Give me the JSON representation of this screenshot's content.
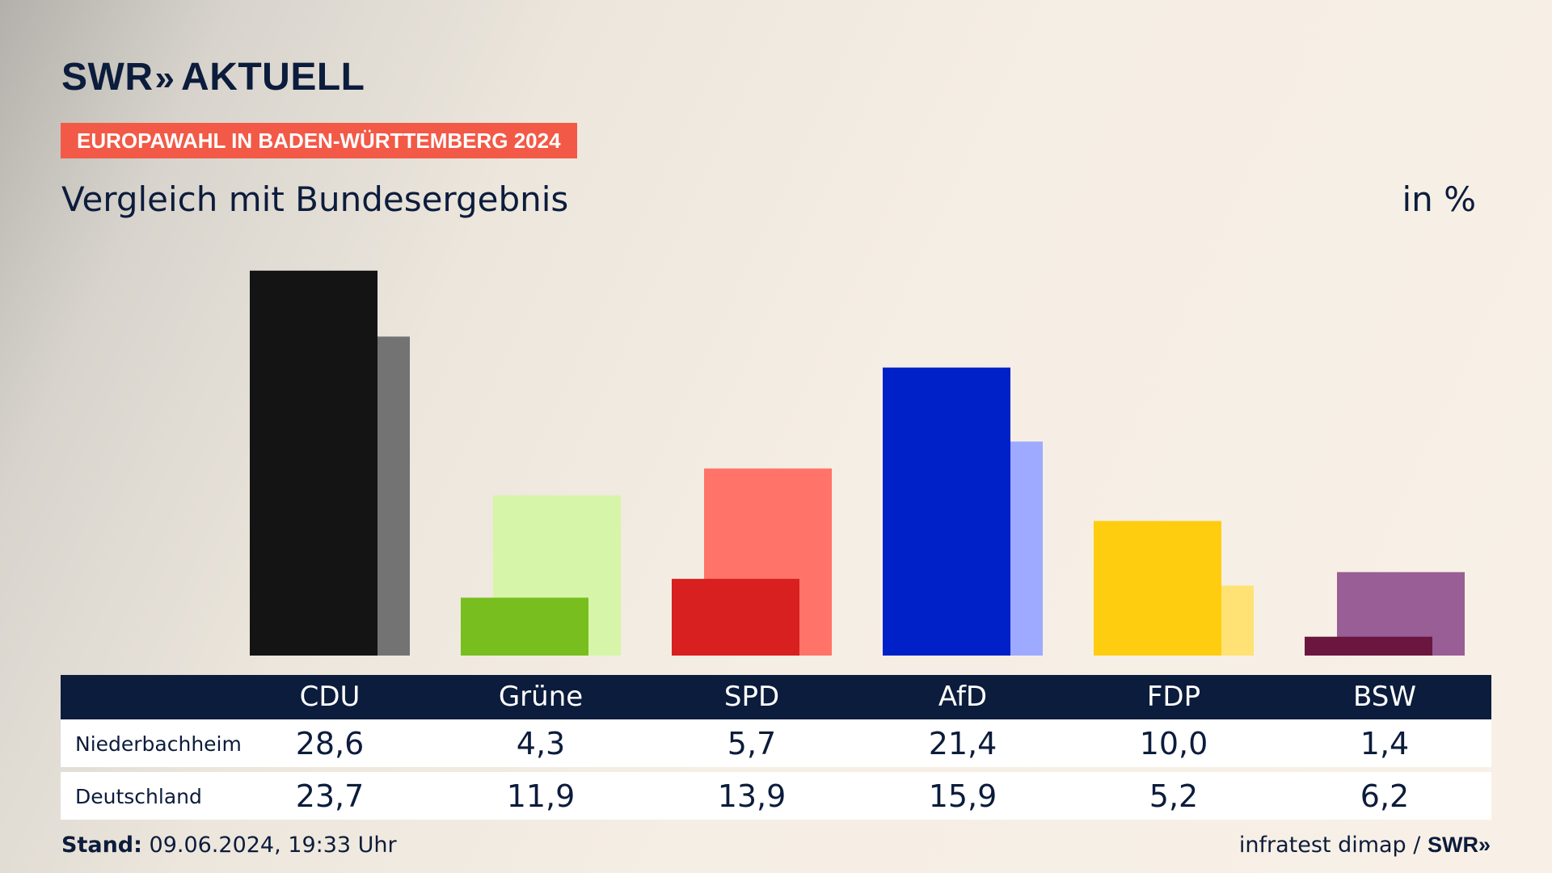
{
  "header": {
    "logo_text": "SWR",
    "logo_chevrons": "»",
    "logo_suffix": "AKTUELL",
    "badge": "EUROPAWAHL IN BADEN-WÜRTTEMBERG 2024",
    "subtitle": "Vergleich mit Bundesergebnis",
    "unit": "in %"
  },
  "table": {
    "row_labels": [
      "Niederbachheim",
      "Deutschland"
    ]
  },
  "footer": {
    "stand_label": "Stand:",
    "stand_value": "09.06.2024, 19:33 Uhr",
    "source": "infratest dimap /",
    "brand": "SWR»"
  },
  "chart_data": {
    "type": "bar",
    "categories": [
      "CDU",
      "Grüne",
      "SPD",
      "AfD",
      "FDP",
      "BSW"
    ],
    "series": [
      {
        "name": "Niederbachheim",
        "values": [
          28.6,
          4.3,
          5.7,
          21.4,
          10.0,
          1.4
        ]
      },
      {
        "name": "Deutschland",
        "values": [
          23.7,
          11.9,
          13.9,
          15.9,
          5.2,
          6.2
        ]
      }
    ],
    "labels": {
      "Niederbachheim": [
        "28,6",
        "4,3",
        "5,7",
        "21,4",
        "10,0",
        "1,4"
      ],
      "Deutschland": [
        "23,7",
        "11,9",
        "13,9",
        "15,9",
        "5,2",
        "6,2"
      ]
    },
    "colors": {
      "Niederbachheim": [
        "#141414",
        "#78be1e",
        "#d7201f",
        "#0021c8",
        "#ffcd0f",
        "#6b163f"
      ],
      "Deutschland": [
        "#737373",
        "#d6f5a8",
        "#ff7368",
        "#9daaff",
        "#ffe273",
        "#9a5e96"
      ]
    },
    "ylim": [
      0,
      30
    ]
  }
}
